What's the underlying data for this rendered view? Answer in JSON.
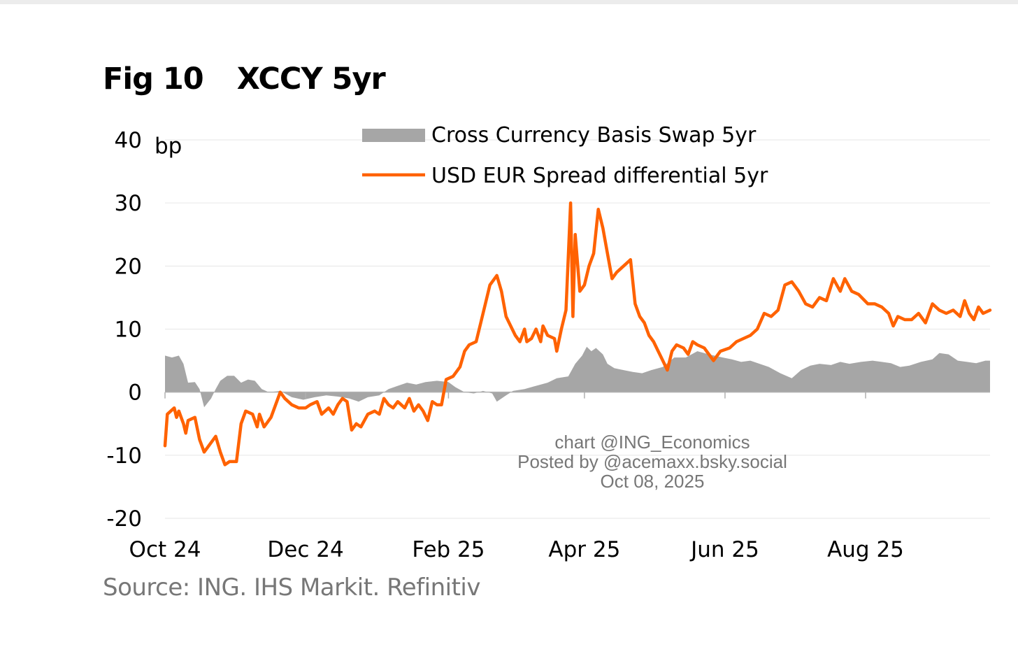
{
  "figure": {
    "label": "Fig 10",
    "title": "XCCY 5yr",
    "source": "Source: ING. IHS Markit. Refinitiv"
  },
  "watermark": {
    "line1": "chart @ING_Economics",
    "line2": "Posted by @acemaxx.bsky.social",
    "line3": "Oct 08, 2025"
  },
  "colors": {
    "orange": "#FF6200",
    "gray_area": "#A6A6A6",
    "grid": "#E6E6E6",
    "axis": "#B0B0B0"
  },
  "chart_data": {
    "type": "line",
    "title": "XCCY 5yr",
    "ylabel": "bp",
    "ylim": [
      -20,
      40
    ],
    "yticks": [
      40,
      30,
      20,
      10,
      0,
      -10,
      -20
    ],
    "xlim": [
      "2024-10-01",
      "2025-09-24"
    ],
    "xticks": [
      {
        "date": "2024-10-01",
        "label": "Oct 24"
      },
      {
        "date": "2024-12-01",
        "label": "Dec 24"
      },
      {
        "date": "2025-02-01",
        "label": "Feb 25"
      },
      {
        "date": "2025-04-01",
        "label": "Apr 25"
      },
      {
        "date": "2025-06-01",
        "label": "Jun 25"
      },
      {
        "date": "2025-08-01",
        "label": "Aug 25"
      }
    ],
    "grid": true,
    "legend_position": "top",
    "series": [
      {
        "name": "Cross Currency Basis Swap 5yr",
        "type": "area",
        "color": "#A6A6A6",
        "points": [
          [
            "2024-10-01",
            5.8
          ],
          [
            "2024-10-04",
            5.5
          ],
          [
            "2024-10-07",
            5.8
          ],
          [
            "2024-10-09",
            4.5
          ],
          [
            "2024-10-11",
            1.5
          ],
          [
            "2024-10-14",
            1.6
          ],
          [
            "2024-10-16",
            0.5
          ],
          [
            "2024-10-18",
            -2.4
          ],
          [
            "2024-10-21",
            -1.0
          ],
          [
            "2024-10-23",
            0.5
          ],
          [
            "2024-10-25",
            1.8
          ],
          [
            "2024-10-28",
            2.6
          ],
          [
            "2024-10-31",
            2.6
          ],
          [
            "2024-11-03",
            1.5
          ],
          [
            "2024-11-06",
            2.0
          ],
          [
            "2024-11-09",
            1.8
          ],
          [
            "2024-11-12",
            0.5
          ],
          [
            "2024-11-15",
            0.0
          ],
          [
            "2024-11-20",
            0.2
          ],
          [
            "2024-11-25",
            -0.8
          ],
          [
            "2024-11-30",
            -1.2
          ],
          [
            "2024-12-05",
            -0.8
          ],
          [
            "2024-12-10",
            -0.5
          ],
          [
            "2024-12-15",
            -0.7
          ],
          [
            "2024-12-20",
            -1.0
          ],
          [
            "2024-12-24",
            -1.5
          ],
          [
            "2024-12-28",
            -0.8
          ],
          [
            "2025-01-02",
            -0.5
          ],
          [
            "2025-01-06",
            0.5
          ],
          [
            "2025-01-10",
            1.0
          ],
          [
            "2025-01-14",
            1.5
          ],
          [
            "2025-01-18",
            1.2
          ],
          [
            "2025-01-22",
            1.6
          ],
          [
            "2025-01-27",
            1.8
          ],
          [
            "2025-02-01",
            1.6
          ],
          [
            "2025-02-04",
            0.8
          ],
          [
            "2025-02-08",
            0.0
          ],
          [
            "2025-02-12",
            -0.2
          ],
          [
            "2025-02-16",
            0.2
          ],
          [
            "2025-02-20",
            -0.2
          ],
          [
            "2025-02-22",
            -1.5
          ],
          [
            "2025-02-26",
            -0.5
          ],
          [
            "2025-03-01",
            0.2
          ],
          [
            "2025-03-06",
            0.5
          ],
          [
            "2025-03-11",
            1.0
          ],
          [
            "2025-03-16",
            1.5
          ],
          [
            "2025-03-20",
            2.2
          ],
          [
            "2025-03-25",
            2.5
          ],
          [
            "2025-03-28",
            4.5
          ],
          [
            "2025-03-31",
            5.8
          ],
          [
            "2025-04-02",
            7.2
          ],
          [
            "2025-04-04",
            6.5
          ],
          [
            "2025-04-06",
            7.0
          ],
          [
            "2025-04-09",
            6.0
          ],
          [
            "2025-04-11",
            4.5
          ],
          [
            "2025-04-14",
            3.8
          ],
          [
            "2025-04-18",
            3.5
          ],
          [
            "2025-04-22",
            3.2
          ],
          [
            "2025-04-26",
            3.0
          ],
          [
            "2025-04-30",
            3.5
          ],
          [
            "2025-05-05",
            4.0
          ],
          [
            "2025-05-10",
            5.5
          ],
          [
            "2025-05-15",
            5.5
          ],
          [
            "2025-05-20",
            6.5
          ],
          [
            "2025-05-25",
            6.0
          ],
          [
            "2025-05-31",
            5.5
          ],
          [
            "2025-06-04",
            5.2
          ],
          [
            "2025-06-08",
            4.8
          ],
          [
            "2025-06-12",
            5.0
          ],
          [
            "2025-06-16",
            4.5
          ],
          [
            "2025-06-20",
            4.0
          ],
          [
            "2025-06-25",
            3.0
          ],
          [
            "2025-06-30",
            2.2
          ],
          [
            "2025-07-04",
            3.5
          ],
          [
            "2025-07-08",
            4.2
          ],
          [
            "2025-07-12",
            4.5
          ],
          [
            "2025-07-17",
            4.3
          ],
          [
            "2025-07-21",
            4.8
          ],
          [
            "2025-07-25",
            4.5
          ],
          [
            "2025-07-30",
            4.8
          ],
          [
            "2025-08-04",
            5.0
          ],
          [
            "2025-08-08",
            4.8
          ],
          [
            "2025-08-12",
            4.6
          ],
          [
            "2025-08-16",
            4.0
          ],
          [
            "2025-08-20",
            4.2
          ],
          [
            "2025-08-25",
            4.8
          ],
          [
            "2025-08-30",
            5.2
          ],
          [
            "2025-09-02",
            6.2
          ],
          [
            "2025-09-06",
            6.0
          ],
          [
            "2025-09-10",
            5.0
          ],
          [
            "2025-09-14",
            4.8
          ],
          [
            "2025-09-18",
            4.6
          ],
          [
            "2025-09-22",
            5.0
          ],
          [
            "2025-09-24",
            5.0
          ]
        ]
      },
      {
        "name": "USD EUR Spread differential 5yr",
        "type": "line",
        "color": "#FF6200",
        "points": [
          [
            "2024-10-01",
            -8.5
          ],
          [
            "2024-10-02",
            -3.5
          ],
          [
            "2024-10-05",
            -2.5
          ],
          [
            "2024-10-06",
            -4.0
          ],
          [
            "2024-10-07",
            -3.0
          ],
          [
            "2024-10-09",
            -5.0
          ],
          [
            "2024-10-10",
            -6.5
          ],
          [
            "2024-10-11",
            -4.5
          ],
          [
            "2024-10-14",
            -4.0
          ],
          [
            "2024-10-16",
            -7.5
          ],
          [
            "2024-10-18",
            -9.5
          ],
          [
            "2024-10-21",
            -8.0
          ],
          [
            "2024-10-23",
            -7.0
          ],
          [
            "2024-10-25",
            -9.5
          ],
          [
            "2024-10-27",
            -11.5
          ],
          [
            "2024-10-29",
            -11.0
          ],
          [
            "2024-11-01",
            -11.0
          ],
          [
            "2024-11-03",
            -5.0
          ],
          [
            "2024-11-05",
            -3.0
          ],
          [
            "2024-11-08",
            -3.5
          ],
          [
            "2024-11-10",
            -5.5
          ],
          [
            "2024-11-11",
            -3.5
          ],
          [
            "2024-11-13",
            -5.5
          ],
          [
            "2024-11-16",
            -4.0
          ],
          [
            "2024-11-18",
            -2.0
          ],
          [
            "2024-11-20",
            0.0
          ],
          [
            "2024-11-22",
            -1.0
          ],
          [
            "2024-11-25",
            -2.0
          ],
          [
            "2024-11-28",
            -2.5
          ],
          [
            "2024-12-01",
            -2.5
          ],
          [
            "2024-12-03",
            -2.0
          ],
          [
            "2024-12-06",
            -1.5
          ],
          [
            "2024-12-08",
            -3.5
          ],
          [
            "2024-12-11",
            -2.5
          ],
          [
            "2024-12-13",
            -3.5
          ],
          [
            "2024-12-15",
            -2.0
          ],
          [
            "2024-12-17",
            -1.0
          ],
          [
            "2024-12-19",
            -1.5
          ],
          [
            "2024-12-21",
            -6.0
          ],
          [
            "2024-12-23",
            -5.0
          ],
          [
            "2024-12-25",
            -5.5
          ],
          [
            "2024-12-28",
            -3.5
          ],
          [
            "2024-12-31",
            -3.0
          ],
          [
            "2025-01-02",
            -3.5
          ],
          [
            "2025-01-04",
            -1.0
          ],
          [
            "2025-01-06",
            -2.0
          ],
          [
            "2025-01-08",
            -2.5
          ],
          [
            "2025-01-10",
            -1.5
          ],
          [
            "2025-01-13",
            -2.5
          ],
          [
            "2025-01-15",
            -1.0
          ],
          [
            "2025-01-17",
            -3.0
          ],
          [
            "2025-01-19",
            -2.0
          ],
          [
            "2025-01-21",
            -3.0
          ],
          [
            "2025-01-23",
            -4.5
          ],
          [
            "2025-01-25",
            -1.5
          ],
          [
            "2025-01-27",
            -2.0
          ],
          [
            "2025-01-29",
            -2.0
          ],
          [
            "2025-01-31",
            2.0
          ],
          [
            "2025-02-03",
            2.5
          ],
          [
            "2025-02-06",
            4.0
          ],
          [
            "2025-02-08",
            6.5
          ],
          [
            "2025-02-10",
            7.5
          ],
          [
            "2025-02-13",
            8.0
          ],
          [
            "2025-02-15",
            11.0
          ],
          [
            "2025-02-17",
            14.0
          ],
          [
            "2025-02-19",
            17.0
          ],
          [
            "2025-02-22",
            18.5
          ],
          [
            "2025-02-24",
            16.0
          ],
          [
            "2025-02-26",
            12.0
          ],
          [
            "2025-02-28",
            10.5
          ],
          [
            "2025-03-02",
            9.0
          ],
          [
            "2025-03-04",
            8.0
          ],
          [
            "2025-03-06",
            10.0
          ],
          [
            "2025-03-07",
            8.0
          ],
          [
            "2025-03-09",
            8.5
          ],
          [
            "2025-03-11",
            10.0
          ],
          [
            "2025-03-13",
            8.0
          ],
          [
            "2025-03-14",
            10.5
          ],
          [
            "2025-03-16",
            9.0
          ],
          [
            "2025-03-19",
            8.5
          ],
          [
            "2025-03-20",
            6.5
          ],
          [
            "2025-03-22",
            10.0
          ],
          [
            "2025-03-24",
            13.0
          ],
          [
            "2025-03-26",
            30.0
          ],
          [
            "2025-03-27",
            12.0
          ],
          [
            "2025-03-28",
            25.0
          ],
          [
            "2025-03-29",
            20.5
          ],
          [
            "2025-03-30",
            16.0
          ],
          [
            "2025-04-01",
            17.0
          ],
          [
            "2025-04-03",
            20.0
          ],
          [
            "2025-04-05",
            22.0
          ],
          [
            "2025-04-07",
            29.0
          ],
          [
            "2025-04-09",
            26.0
          ],
          [
            "2025-04-11",
            22.0
          ],
          [
            "2025-04-13",
            18.0
          ],
          [
            "2025-04-15",
            19.0
          ],
          [
            "2025-04-18",
            20.0
          ],
          [
            "2025-04-21",
            21.0
          ],
          [
            "2025-04-23",
            14.0
          ],
          [
            "2025-04-25",
            12.0
          ],
          [
            "2025-04-27",
            11.0
          ],
          [
            "2025-04-29",
            9.0
          ],
          [
            "2025-05-01",
            8.0
          ],
          [
            "2025-05-03",
            6.5
          ],
          [
            "2025-05-05",
            5.0
          ],
          [
            "2025-05-07",
            3.5
          ],
          [
            "2025-05-09",
            6.5
          ],
          [
            "2025-05-11",
            7.5
          ],
          [
            "2025-05-14",
            7.0
          ],
          [
            "2025-05-16",
            6.0
          ],
          [
            "2025-05-18",
            8.0
          ],
          [
            "2025-05-20",
            7.5
          ],
          [
            "2025-05-23",
            7.0
          ],
          [
            "2025-05-27",
            5.0
          ],
          [
            "2025-05-30",
            6.5
          ],
          [
            "2025-06-03",
            7.0
          ],
          [
            "2025-06-06",
            8.0
          ],
          [
            "2025-06-09",
            8.5
          ],
          [
            "2025-06-12",
            9.0
          ],
          [
            "2025-06-15",
            10.0
          ],
          [
            "2025-06-18",
            12.5
          ],
          [
            "2025-06-21",
            12.0
          ],
          [
            "2025-06-24",
            13.0
          ],
          [
            "2025-06-27",
            17.0
          ],
          [
            "2025-06-30",
            17.5
          ],
          [
            "2025-07-03",
            16.0
          ],
          [
            "2025-07-06",
            14.0
          ],
          [
            "2025-07-09",
            13.5
          ],
          [
            "2025-07-12",
            15.0
          ],
          [
            "2025-07-15",
            14.5
          ],
          [
            "2025-07-18",
            18.0
          ],
          [
            "2025-07-21",
            16.0
          ],
          [
            "2025-07-23",
            18.0
          ],
          [
            "2025-07-26",
            16.0
          ],
          [
            "2025-07-29",
            15.5
          ],
          [
            "2025-08-02",
            14.0
          ],
          [
            "2025-08-05",
            14.0
          ],
          [
            "2025-08-08",
            13.5
          ],
          [
            "2025-08-11",
            12.5
          ],
          [
            "2025-08-13",
            10.5
          ],
          [
            "2025-08-15",
            12.0
          ],
          [
            "2025-08-18",
            11.5
          ],
          [
            "2025-08-21",
            11.5
          ],
          [
            "2025-08-24",
            12.5
          ],
          [
            "2025-08-27",
            11.0
          ],
          [
            "2025-08-30",
            14.0
          ],
          [
            "2025-09-02",
            13.0
          ],
          [
            "2025-09-05",
            12.5
          ],
          [
            "2025-09-08",
            13.0
          ],
          [
            "2025-09-11",
            12.0
          ],
          [
            "2025-09-13",
            14.5
          ],
          [
            "2025-09-15",
            12.5
          ],
          [
            "2025-09-17",
            11.5
          ],
          [
            "2025-09-19",
            13.5
          ],
          [
            "2025-09-21",
            12.5
          ],
          [
            "2025-09-24",
            13.0
          ]
        ]
      }
    ]
  }
}
